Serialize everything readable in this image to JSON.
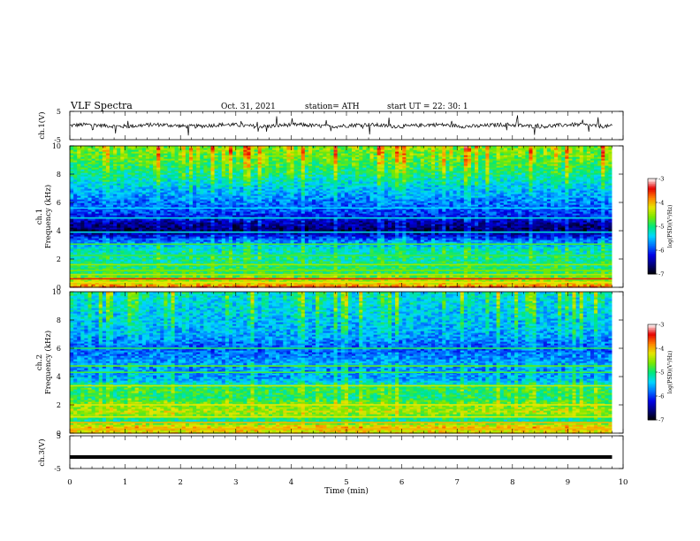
{
  "header": {
    "title": "VLF  Spectra",
    "date": "Oct. 31, 2021",
    "station": "station= ATH",
    "start": "start  UT  =    22: 30: 1"
  },
  "panels": {
    "ch1_label": "ch.1(V)",
    "spec1_label": "ch.1",
    "spec1_ylabel": "Frequency (kHz)",
    "spec2_label": "ch.2",
    "spec2_ylabel": "Frequency (kHz)",
    "ch3_label": "ch.3(V)",
    "xlabel": "Time  (min)",
    "colorbar_label": "log(PSD)(V²/Hz)"
  },
  "colors": {
    "colormap": [
      "#000000",
      "#00007a",
      "#0000e6",
      "#0070ff",
      "#00d8ff",
      "#00e87a",
      "#7ae800",
      "#e6e600",
      "#ff8000",
      "#e60000",
      "#ffffff"
    ]
  },
  "chart_data": [
    {
      "type": "line",
      "name": "ch1-voltage",
      "ylabel": "ch.1(V)",
      "xlim": [
        0,
        10
      ],
      "ylim": [
        -5,
        5
      ],
      "yticks": [
        "5",
        "-5"
      ],
      "xdata_end": 9.8,
      "mean": 0,
      "spread": 0.7
    },
    {
      "type": "heatmap",
      "name": "ch1-spectrogram",
      "ylabel": "Frequency (kHz)",
      "xlim": [
        0,
        10
      ],
      "ylim": [
        0,
        10
      ],
      "yticks": [
        "0",
        "2",
        "4",
        "6",
        "8",
        "10"
      ],
      "xdata_end": 9.8,
      "colorbar": {
        "min": -7,
        "max": -3,
        "ticks": [
          "-3",
          "-4",
          "-5",
          "-6",
          "-7"
        ],
        "label": "log(PSD)(V²/Hz)"
      },
      "profile": [
        [
          0,
          -3.6
        ],
        [
          0.4,
          -4.4
        ],
        [
          1,
          -4.9
        ],
        [
          2,
          -5.1
        ],
        [
          2.8,
          -5.3
        ],
        [
          3.5,
          -6.0
        ],
        [
          4.0,
          -6.7
        ],
        [
          4.6,
          -6.5
        ],
        [
          5.2,
          -6.0
        ],
        [
          6,
          -5.8
        ],
        [
          7,
          -5.5
        ],
        [
          8,
          -5.1
        ],
        [
          9,
          -4.8
        ],
        [
          10,
          -4.6
        ]
      ],
      "lines": [
        [
          0.35,
          -4.2
        ],
        [
          0.6,
          -3.5
        ],
        [
          0.9,
          -4.4
        ],
        [
          1.2,
          -4.6
        ],
        [
          1.6,
          -4.5
        ],
        [
          2.25,
          -4.8
        ],
        [
          3.05,
          -4.8
        ],
        [
          3.9,
          -5.3
        ],
        [
          4.9,
          -5.3
        ],
        [
          5.6,
          -5.4
        ]
      ],
      "burst_density": 0.55
    },
    {
      "type": "heatmap",
      "name": "ch2-spectrogram",
      "ylabel": "Frequency (kHz)",
      "xlim": [
        0,
        10
      ],
      "ylim": [
        0,
        10
      ],
      "yticks": [
        "0",
        "2",
        "4",
        "6",
        "8",
        "10"
      ],
      "xdata_end": 9.8,
      "colorbar": {
        "min": -7,
        "max": -3,
        "ticks": [
          "-3",
          "-4",
          "-5",
          "-6",
          "-7"
        ],
        "label": "log(PSD)(V²/Hz)"
      },
      "profile": [
        [
          0,
          -4.2
        ],
        [
          0.5,
          -4.1
        ],
        [
          0.9,
          -5.2
        ],
        [
          1.5,
          -4.4
        ],
        [
          2,
          -4.6
        ],
        [
          2.5,
          -5.0
        ],
        [
          3.2,
          -4.9
        ],
        [
          3.8,
          -5.6
        ],
        [
          4.5,
          -5.7
        ],
        [
          5,
          -5.6
        ],
        [
          6,
          -5.9
        ],
        [
          7,
          -5.6
        ],
        [
          8,
          -5.5
        ],
        [
          9,
          -5.4
        ],
        [
          10,
          -5.3
        ]
      ],
      "lines": [
        [
          0.3,
          -4.0
        ],
        [
          0.75,
          -4.0
        ],
        [
          1.15,
          -4.2
        ],
        [
          2.0,
          -4.2
        ],
        [
          3.35,
          -4.3
        ],
        [
          4.3,
          -4.8
        ],
        [
          4.75,
          -4.7
        ],
        [
          6.0,
          -4.9
        ]
      ],
      "burst_density": 0.5
    },
    {
      "type": "line",
      "name": "ch3-voltage",
      "ylabel": "ch.3(V)",
      "xlim": [
        0,
        10
      ],
      "ylim": [
        -5,
        5
      ],
      "yticks": [
        "5",
        "-5"
      ],
      "xdata_end": 9.8,
      "mean": -1.5,
      "spread": 0
    }
  ],
  "xaxis": {
    "label": "Time  (min)",
    "range": [
      0,
      10
    ],
    "ticks": [
      "0",
      "1",
      "2",
      "3",
      "4",
      "5",
      "6",
      "7",
      "8",
      "9",
      "10"
    ]
  }
}
